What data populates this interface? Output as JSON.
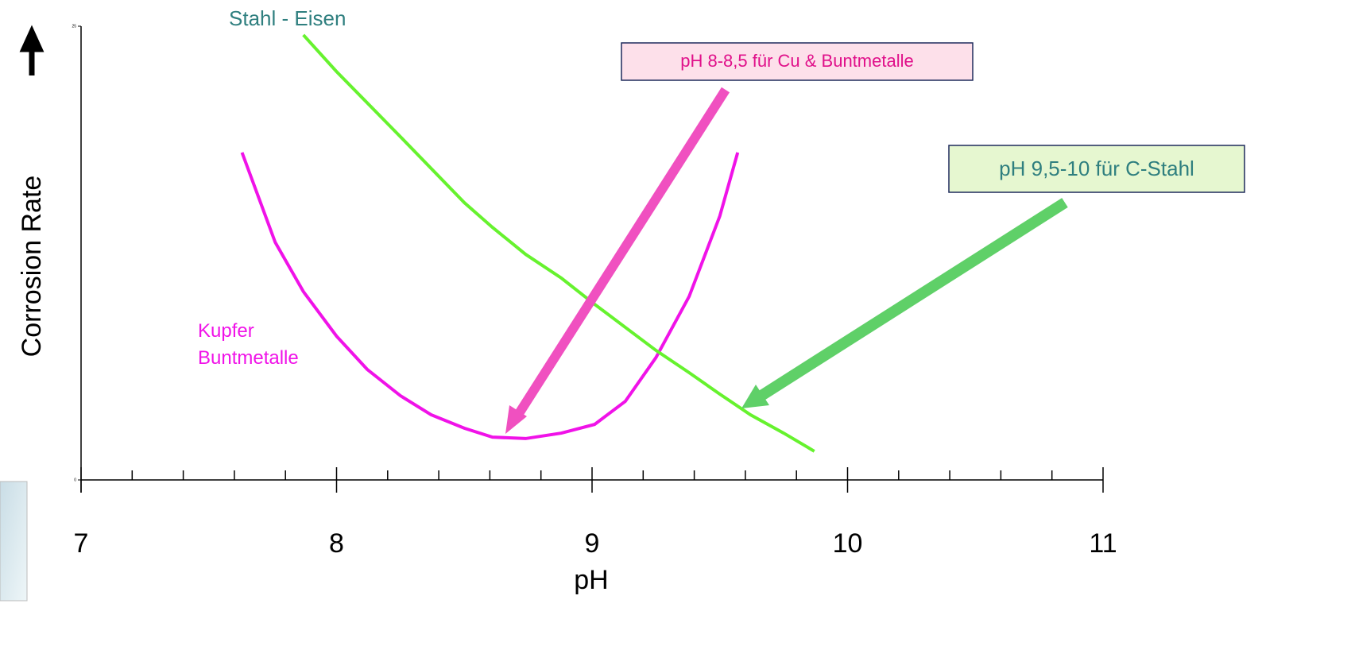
{
  "chart_data": {
    "type": "line",
    "xlabel": "pH",
    "ylabel": "Corrosion Rate",
    "xlim": [
      7,
      11
    ],
    "ylim": [
      0,
      25
    ],
    "xticks": [
      7,
      8,
      9,
      10,
      11
    ],
    "xminorticks": [
      7.2,
      7.4,
      7.6,
      7.8,
      8.2,
      8.4,
      8.6,
      8.8,
      9.2,
      9.4,
      9.6,
      9.8,
      10.2,
      10.4,
      10.6,
      10.8
    ],
    "yticks": [
      0,
      25
    ],
    "series": [
      {
        "name": "Kupfer Buntmetalle",
        "color": "#f012e8",
        "x": [
          7.63,
          7.76,
          7.87,
          8.0,
          8.12,
          8.25,
          8.37,
          8.5,
          8.61,
          8.74,
          8.88,
          9.01,
          9.13,
          9.25,
          9.38,
          9.5,
          9.57
        ],
        "values": [
          18.04,
          13.09,
          10.38,
          7.92,
          6.09,
          4.64,
          3.59,
          2.85,
          2.36,
          2.28,
          2.58,
          3.06,
          4.33,
          6.74,
          10.11,
          14.54,
          18.04
        ]
      },
      {
        "name": "Stahl - Eisen",
        "color": "#66f22e",
        "x": [
          7.87,
          8.0,
          8.25,
          8.5,
          8.61,
          8.74,
          8.88,
          9.01,
          9.13,
          9.25,
          9.38,
          9.5,
          9.62,
          9.75,
          9.87
        ],
        "values": [
          24.52,
          22.5,
          18.91,
          15.28,
          13.92,
          12.43,
          11.12,
          9.68,
          8.41,
          7.14,
          5.91,
          4.73,
          3.59,
          2.58,
          1.58
        ]
      }
    ],
    "annotations": [
      {
        "text": "pH 8-8,5 für Cu & Buntmetalle"
      },
      {
        "text": "pH 9,5-10 für C-Stahl"
      }
    ]
  }
}
